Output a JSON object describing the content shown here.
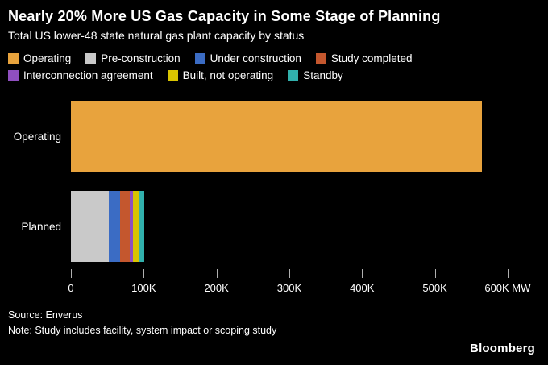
{
  "header": {
    "title": "Nearly 20% More US Gas Capacity in Some Stage of Planning",
    "subtitle": "Total US lower-48 state natural gas plant capacity by status"
  },
  "legend": {
    "row_split": 4
  },
  "chart_data": {
    "type": "bar",
    "orientation": "horizontal",
    "stacked": true,
    "value_unit": "thousand MW",
    "categories": [
      "Operating",
      "Planned"
    ],
    "series": [
      {
        "name": "Operating",
        "color": "#e8a33d",
        "values": [
          565,
          0
        ]
      },
      {
        "name": "Pre-construction",
        "color": "#c9c9c9",
        "values": [
          0,
          52
        ]
      },
      {
        "name": "Under construction",
        "color": "#3b6cc4",
        "values": [
          0,
          16
        ]
      },
      {
        "name": "Study completed",
        "color": "#c4572e",
        "values": [
          0,
          13
        ]
      },
      {
        "name": "Interconnection agreement",
        "color": "#8f4fbf",
        "values": [
          0,
          4
        ]
      },
      {
        "name": "Built, not operating",
        "color": "#d9c400",
        "values": [
          0,
          9
        ]
      },
      {
        "name": "Standby",
        "color": "#31b0ac",
        "values": [
          0,
          7
        ]
      }
    ],
    "ticks": [
      {
        "label": "0",
        "value": 0
      },
      {
        "label": "100K",
        "value": 100
      },
      {
        "label": "200K",
        "value": 200
      },
      {
        "label": "300K",
        "value": 300
      },
      {
        "label": "400K",
        "value": 400
      },
      {
        "label": "500K",
        "value": 500
      },
      {
        "label": "600K MW",
        "value": 600
      }
    ],
    "xlim": [
      0,
      640
    ],
    "grid": false,
    "legend_position": "top"
  },
  "footer": {
    "source": "Source: Enverus",
    "note": "Note: Study includes facility, system impact or scoping study",
    "brand": "Bloomberg"
  }
}
